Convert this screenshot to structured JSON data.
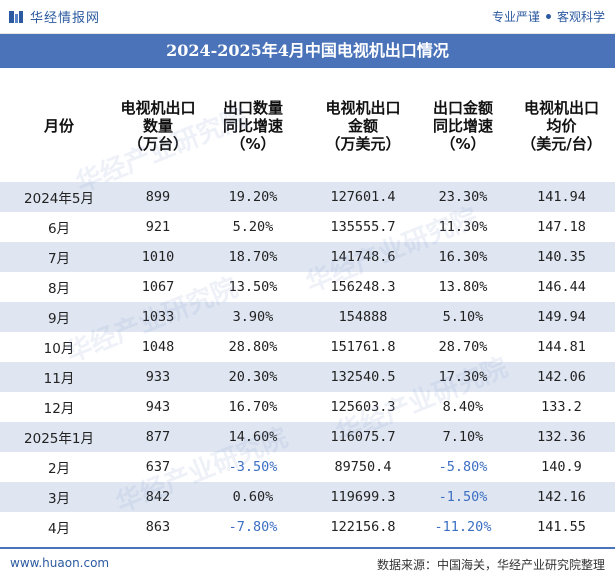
{
  "header": {
    "logo_text": "华经情报网",
    "slogan_left": "专业严谨",
    "slogan_right": "客观科学"
  },
  "title": "2024-2025年4月中国电视机出口情况",
  "table": {
    "columns": [
      "月份",
      "电视机出口\n数量\n（万台）",
      "出口数量\n同比增速\n（%）",
      "电视机出口\n金额\n（万美元）",
      "出口金额\n同比增速\n（%）",
      "电视机出口\n均价\n（美元/台）"
    ],
    "rows": [
      [
        "2024年5月",
        "899",
        "19.20%",
        "127601.4",
        "23.30%",
        "141.94"
      ],
      [
        "6月",
        "921",
        "5.20%",
        "135555.7",
        "11.30%",
        "147.18"
      ],
      [
        "7月",
        "1010",
        "18.70%",
        "141748.6",
        "16.30%",
        "140.35"
      ],
      [
        "8月",
        "1067",
        "13.50%",
        "156248.3",
        "13.80%",
        "146.44"
      ],
      [
        "9月",
        "1033",
        "3.90%",
        "154888",
        "5.10%",
        "149.94"
      ],
      [
        "10月",
        "1048",
        "28.80%",
        "151761.8",
        "28.70%",
        "144.81"
      ],
      [
        "11月",
        "933",
        "20.30%",
        "132540.5",
        "17.30%",
        "142.06"
      ],
      [
        "12月",
        "943",
        "16.70%",
        "125603.3",
        "8.40%",
        "133.2"
      ],
      [
        "2025年1月",
        "877",
        "14.60%",
        "116075.7",
        "7.10%",
        "132.36"
      ],
      [
        "2月",
        "637",
        "-3.50%",
        "89750.4",
        "-5.80%",
        "140.9"
      ],
      [
        "3月",
        "842",
        "0.60%",
        "119699.3",
        "-1.50%",
        "142.16"
      ],
      [
        "4月",
        "863",
        "-7.80%",
        "122156.8",
        "-11.20%",
        "141.55"
      ]
    ]
  },
  "footer": {
    "website": "www.huaon.com",
    "source": "数据来源：中国海关，华经产业研究院整理"
  },
  "watermark_text": "华经产业研究院",
  "colors": {
    "title_bg": "#4a73b9",
    "row_stripe": "#dfe6f2",
    "negative_text": "#3d6fc2",
    "brand": "#2c5aa0"
  }
}
